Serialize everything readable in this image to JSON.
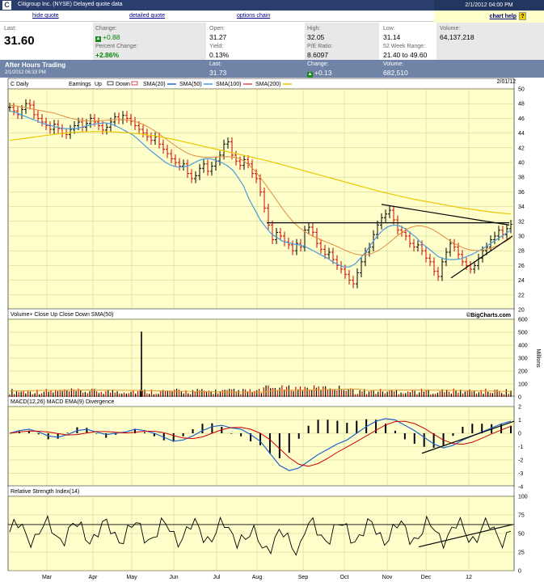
{
  "header": {
    "ticker": "C",
    "title": "Citigroup Inc. (NYSE)   Delayed quote data",
    "datetime": "2/1/2012 04:00 PM",
    "links": [
      "hide quote",
      "detailed quote",
      "options chain"
    ],
    "chart_help": "chart help"
  },
  "quote": {
    "last_label": "Last:",
    "last": "31.60",
    "change_label": "Change:",
    "change": "+0.88",
    "pct_label": "Percent Change:",
    "pct": "+2.86%",
    "open_label": "Open:",
    "open": "31.27",
    "yield_label": "Yield:",
    "yield": "0.13%",
    "high_label": "High:",
    "high": "32.05",
    "pe_label": "P/E Ratio:",
    "pe": "8.6097",
    "low_label": "Low:",
    "low": "31.14",
    "range_label": "52 Week Range:",
    "range": "21.40 to 49.60",
    "volume_label": "Volume:",
    "volume": "64,137,218"
  },
  "after_hours": {
    "title": "After Hours Trading",
    "time": "2/1/2012 06:33 PM",
    "last_label": "Last:",
    "last": "31.73",
    "change_label": "Change:",
    "change": "+0.13",
    "volume_label": "Volume:",
    "volume": "682,510"
  },
  "colors": {
    "panel_bg": "#ffffcc",
    "up": "#000000",
    "down": "#cc0000",
    "sma20": "#2266cc",
    "sma50": "#4a9be0",
    "sma100": "#e05050",
    "sma200": "#e8c800",
    "header": "#2a3f6e"
  },
  "chart_data": [
    {
      "type": "line",
      "title": "C Daily",
      "legend": [
        "Earnings",
        "Up",
        "Down",
        "SMA(20)",
        "SMA(50)",
        "SMA(100)",
        "SMA(200)"
      ],
      "date": "2/01/12",
      "yticks": [
        20,
        22,
        24,
        26,
        28,
        30,
        32,
        34,
        36,
        38,
        40,
        42,
        44,
        46,
        48,
        50
      ],
      "ylim": [
        20,
        50
      ],
      "months": [
        "Mar",
        "Apr",
        "May",
        "Jun",
        "Jul",
        "Aug",
        "Sep",
        "Oct",
        "Nov",
        "Dec",
        "12"
      ],
      "close": [
        47.5,
        47.0,
        46.5,
        47.2,
        48.0,
        47.8,
        46.5,
        46.0,
        45.5,
        45.0,
        44.5,
        45.2,
        44.6,
        44.0,
        43.8,
        44.5,
        45.0,
        45.5,
        44.8,
        45.3,
        46.0,
        45.5,
        45.0,
        44.4,
        44.8,
        45.5,
        46.2,
        45.8,
        46.4,
        46.0,
        45.6,
        45.0,
        44.5,
        44.0,
        43.5,
        43.0,
        43.5,
        42.5,
        41.8,
        41.2,
        40.5,
        40.0,
        39.5,
        39.8,
        38.5,
        37.8,
        38.2,
        39.2,
        39.8,
        38.8,
        39.5,
        40.2,
        41.0,
        42.5,
        42.8,
        41.0,
        40.2,
        39.6,
        40.4,
        39.8,
        38.5,
        37.8,
        36.0,
        33.8,
        31.5,
        29.5,
        30.5,
        30.0,
        29.2,
        28.8,
        28.0,
        29.0,
        28.5,
        30.8,
        31.2,
        30.5,
        29.0,
        28.2,
        27.5,
        27.8,
        26.8,
        26.0,
        25.5,
        24.8,
        24.0,
        23.5,
        25.0,
        26.5,
        27.8,
        28.5,
        30.2,
        31.5,
        32.5,
        33.0,
        33.5,
        32.2,
        30.8,
        30.5,
        30.0,
        29.0,
        28.5,
        28.8,
        28.0,
        27.0,
        26.5,
        25.2,
        24.5,
        26.5,
        27.8,
        29.0,
        28.5,
        27.5,
        26.5,
        26.0,
        25.5,
        26.0,
        27.0,
        28.0,
        28.5,
        29.5,
        30.0,
        30.8,
        30.2,
        31.0,
        31.6
      ],
      "sma20": [
        47.0,
        46.8,
        46.5,
        46.2,
        45.9,
        45.6,
        45.3,
        45.1,
        44.9,
        44.7,
        44.6,
        44.6,
        44.6,
        44.8,
        45.0,
        45.2,
        45.3,
        45.4,
        45.3,
        45.0,
        44.6,
        44.2,
        43.8,
        43.2,
        42.5,
        41.8,
        41.2,
        40.6,
        40.0,
        39.6,
        39.4,
        39.4,
        39.5,
        39.9,
        40.3,
        40.5,
        40.5,
        40.3,
        40.0,
        39.6,
        39.0,
        38.0,
        36.8,
        35.0,
        33.6,
        32.2,
        31.2,
        30.3,
        29.8,
        29.3,
        29.1,
        28.9,
        28.8,
        28.6,
        28.2,
        27.8,
        27.4,
        27.0,
        26.5,
        26.1,
        25.8,
        25.8,
        26.2,
        27.0,
        27.9,
        29.0,
        30.0,
        30.8,
        31.3,
        31.5,
        31.4,
        31.0,
        30.4,
        29.8,
        29.0,
        28.4,
        27.8,
        27.2,
        26.9,
        26.8,
        26.8,
        26.9,
        27.2,
        27.5,
        27.9,
        28.3,
        28.8,
        29.3,
        29.8,
        30.3,
        30.8
      ],
      "sma200": [
        43.0,
        43.3,
        43.6,
        43.9,
        44.1,
        44.2,
        44.2,
        44.1,
        43.9,
        43.6,
        43.2,
        42.7,
        42.2,
        41.7,
        41.2,
        40.7,
        40.2,
        39.6,
        39.0,
        38.4,
        37.8,
        37.2,
        36.6,
        36.0,
        35.5,
        35.0,
        34.6,
        34.2,
        33.8,
        33.5,
        33.2,
        33.0
      ]
    },
    {
      "type": "bar",
      "title": "Volume+ Close Up  Close Down  SMA(50)",
      "ylabel": "Millions",
      "yticks": [
        0,
        100,
        200,
        300,
        400,
        500,
        600
      ],
      "ylim": [
        0,
        600
      ],
      "spike": 505
    },
    {
      "type": "line",
      "title": "MACD(12,26)  MACD EMA(9)  Divergence",
      "yticks": [
        -4,
        -3,
        -2,
        -1,
        0,
        1,
        2
      ],
      "ylim": [
        -4,
        2
      ]
    },
    {
      "type": "line",
      "title": "Relative Strength Index(14)",
      "yticks": [
        0,
        25,
        50,
        75,
        100
      ],
      "ylim": [
        0,
        100
      ]
    }
  ],
  "watermark": "©BigCharts.com"
}
